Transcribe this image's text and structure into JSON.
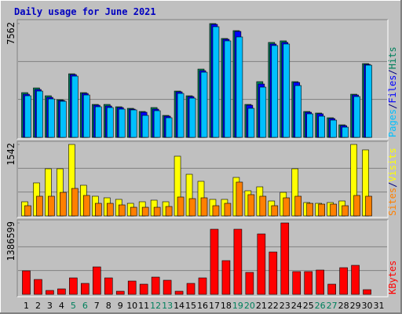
{
  "chart_data": [
    {
      "type": "bar",
      "title": "Daily usage for June 2021",
      "ylim": [
        0,
        7562
      ],
      "yticks": [
        7562
      ],
      "legend_separator": "/",
      "series": [
        {
          "name": "Hits",
          "color": "#00805c",
          "values": [
            2973,
            3285,
            2764,
            2503,
            4224,
            2973,
            2190,
            2190,
            2034,
            1930,
            1721,
            1982,
            1460,
            3077,
            2764,
            4537,
            7562,
            6571,
            7092,
            2190,
            3703,
            6310,
            6414,
            3703,
            1721,
            1617,
            1304,
            834,
            2868,
            4902,
            null
          ]
        },
        {
          "name": "Files",
          "color": "#0000ff",
          "values": [
            2868,
            3181,
            2660,
            2451,
            4172,
            2920,
            2138,
            2086,
            1982,
            1877,
            1669,
            1877,
            1408,
            3025,
            2712,
            4433,
            7510,
            6519,
            7040,
            2138,
            3546,
            6206,
            6310,
            3651,
            1669,
            1565,
            1251,
            782,
            2816,
            4850,
            null
          ]
        },
        {
          "name": "Pages",
          "color": "#00c0ff",
          "values": [
            2764,
            3077,
            2555,
            2399,
            4068,
            2816,
            2034,
            1982,
            1877,
            1825,
            1460,
            1773,
            1304,
            2920,
            2607,
            4329,
            7353,
            6414,
            6675,
            1930,
            3338,
            6102,
            6206,
            3442,
            1565,
            1408,
            1147,
            678,
            2712,
            4798,
            null
          ]
        }
      ]
    },
    {
      "type": "bar",
      "ylim": [
        0,
        1542
      ],
      "yticks": [
        1542
      ],
      "legend_separator": "/",
      "series": [
        {
          "name": "Visits",
          "color": "#ffff00",
          "values": [
            305,
            712,
            1017,
            1017,
            1542,
            661,
            424,
            390,
            356,
            271,
            305,
            339,
            305,
            1288,
            898,
            746,
            356,
            356,
            830,
            542,
            627,
            322,
            508,
            1017,
            288,
            271,
            288,
            322,
            1542,
            1424,
            null
          ]
        },
        {
          "name": "Sites",
          "color": "#ff8000",
          "values": [
            220,
            424,
            424,
            508,
            593,
            441,
            271,
            271,
            237,
            186,
            186,
            186,
            203,
            407,
            373,
            390,
            220,
            271,
            729,
            458,
            424,
            220,
            390,
            424,
            271,
            254,
            254,
            220,
            441,
            424,
            null
          ]
        }
      ]
    },
    {
      "type": "bar",
      "ylim": [
        0,
        1386599
      ],
      "yticks": [
        1386599
      ],
      "categories": [
        "1",
        "2",
        "3",
        "4",
        "5",
        "6",
        "7",
        "8",
        "9",
        "10",
        "11",
        "12",
        "13",
        "14",
        "15",
        "16",
        "17",
        "18",
        "19",
        "20",
        "21",
        "22",
        "23",
        "24",
        "25",
        "26",
        "27",
        "28",
        "29",
        "30",
        "31"
      ],
      "weekend_color": "#00805c",
      "weekend_indices": [
        4,
        5,
        11,
        12,
        18,
        19,
        25,
        26
      ],
      "series": [
        {
          "name": "KBytes",
          "color": "#ff0000",
          "values": [
            457110,
            289500,
            76185,
            106660,
            319980,
            213320,
            533300,
            319980,
            60950,
            259030,
            198080,
            335210,
            274270,
            60950,
            213320,
            319980,
            1264680,
            655190,
            1264680,
            426640,
            1173250,
            822800,
            1386599,
            441870,
            441870,
            472350,
            198080,
            518060,
            563770,
            91420,
            null
          ]
        }
      ]
    }
  ]
}
